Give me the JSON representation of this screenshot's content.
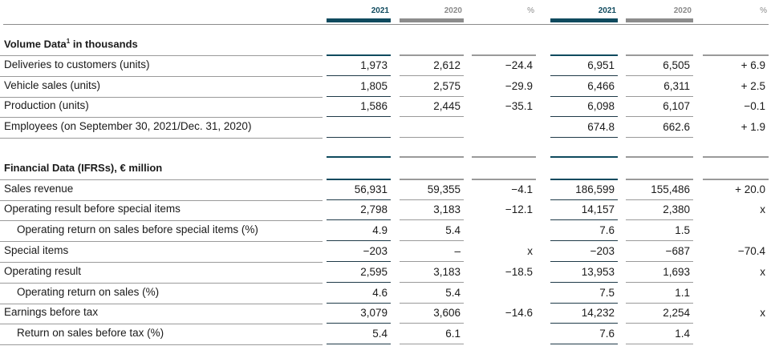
{
  "columns": [
    "2021",
    "2020",
    "%",
    "2021",
    "2020",
    "%"
  ],
  "sections": [
    {
      "title": "Volume Data",
      "title_sup": "1",
      "title_suffix": " in thousands",
      "rows": [
        {
          "label": "Deliveries to customers (units)",
          "sub": false,
          "values": [
            "1,973",
            "2,612",
            "−24.4",
            "6,951",
            "6,505",
            "+ 6.9"
          ]
        },
        {
          "label": "Vehicle sales (units)",
          "sub": false,
          "values": [
            "1,805",
            "2,575",
            "−29.9",
            "6,466",
            "6,311",
            "+ 2.5"
          ]
        },
        {
          "label": "Production (units)",
          "sub": false,
          "values": [
            "1,586",
            "2,445",
            "−35.1",
            "6,098",
            "6,107",
            "−0.1"
          ]
        },
        {
          "label": "Employees (on September 30, 2021/Dec. 31, 2020)",
          "sub": false,
          "values": [
            "",
            "",
            "",
            "674.8",
            "662.6",
            "+ 1.9"
          ]
        }
      ]
    },
    {
      "title": "Financial Data (IFRSs), € million",
      "title_sup": "",
      "title_suffix": "",
      "rows": [
        {
          "label": "Sales revenue",
          "sub": false,
          "values": [
            "56,931",
            "59,355",
            "−4.1",
            "186,599",
            "155,486",
            "+ 20.0"
          ]
        },
        {
          "label": "Operating result before special items",
          "sub": false,
          "values": [
            "2,798",
            "3,183",
            "−12.1",
            "14,157",
            "2,380",
            "x"
          ]
        },
        {
          "label": "Operating return on sales before special items (%)",
          "sub": true,
          "values": [
            "4.9",
            "5.4",
            "",
            "7.6",
            "1.5",
            ""
          ]
        },
        {
          "label": "Special items",
          "sub": false,
          "values": [
            "−203",
            "–",
            "x",
            "−203",
            "−687",
            "−70.4"
          ]
        },
        {
          "label": "Operating result",
          "sub": false,
          "values": [
            "2,595",
            "3,183",
            "−18.5",
            "13,953",
            "1,693",
            "x"
          ]
        },
        {
          "label": "Operating return on sales (%)",
          "sub": true,
          "values": [
            "4.6",
            "5.4",
            "",
            "7.5",
            "1.1",
            ""
          ]
        },
        {
          "label": "Earnings before tax",
          "sub": false,
          "values": [
            "3,079",
            "3,606",
            "−14.6",
            "14,232",
            "2,254",
            "x"
          ]
        },
        {
          "label": "Return on sales before tax (%)",
          "sub": true,
          "values": [
            "5.4",
            "6.1",
            "",
            "7.6",
            "1.4",
            ""
          ]
        }
      ]
    }
  ]
}
